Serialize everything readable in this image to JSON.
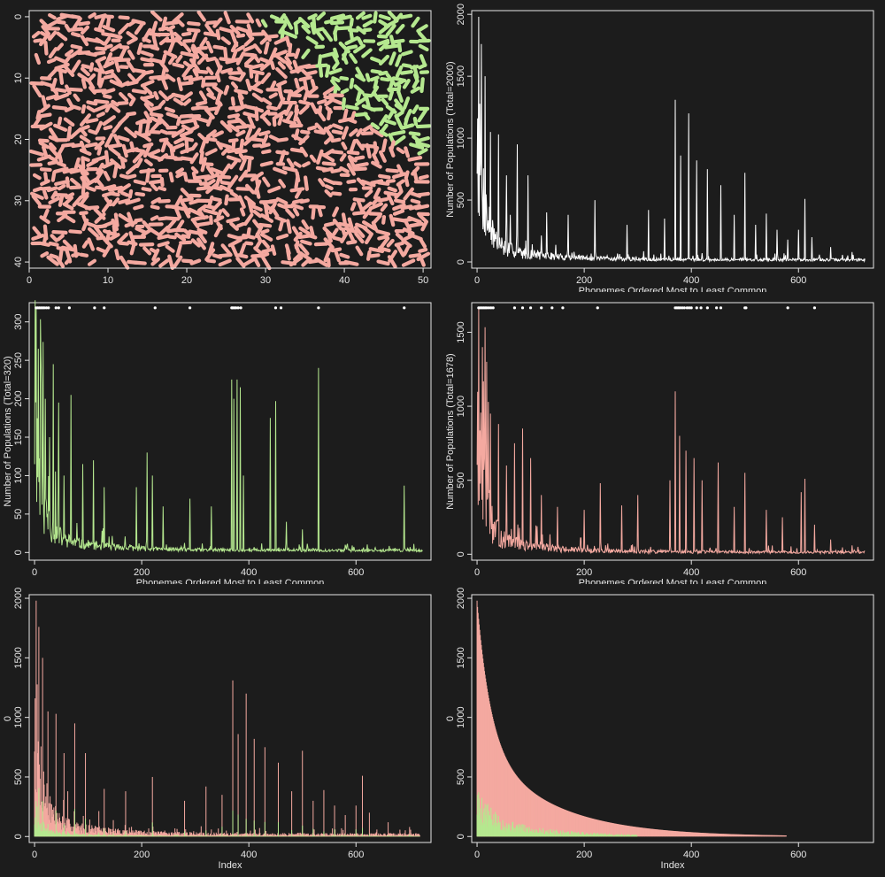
{
  "colors": {
    "background": "#1c1c1c",
    "frame": "#e6e6e6",
    "pink": "#f4a9a0",
    "green": "#b5e88f",
    "white": "#ffffff"
  },
  "chart_data": [
    {
      "id": "map",
      "type": "heatmap",
      "title": "",
      "xlabel": "",
      "ylabel": "",
      "xlim": [
        0,
        51
      ],
      "ylim": [
        41,
        -1
      ],
      "x_ticks": [
        0,
        10,
        20,
        30,
        40,
        50
      ],
      "y_ticks": [
        0,
        10,
        20,
        30,
        40
      ],
      "grid": false,
      "regions": [
        {
          "name": "",
          "color": "#b5e88f",
          "area": "upper-right corner"
        },
        {
          "name": "",
          "color": "#f4a9a0",
          "area": "remainder"
        }
      ],
      "boundary": [
        [
          28,
          0
        ],
        [
          33,
          4
        ],
        [
          36,
          8
        ],
        [
          39,
          13
        ],
        [
          42,
          17
        ],
        [
          45,
          20
        ],
        [
          48,
          22
        ],
        [
          50,
          24
        ]
      ]
    },
    {
      "id": "all",
      "type": "line",
      "title": "",
      "xlabel": "Phonemes Ordered Most to Least Common",
      "ylabel": "Number of Populations (Total=2000)",
      "xlim": [
        -10,
        740
      ],
      "ylim": [
        -50,
        2030
      ],
      "x_ticks": [
        0,
        200,
        400,
        600
      ],
      "y_ticks": [
        0,
        500,
        1000,
        1500,
        2000
      ],
      "color": "#ffffff",
      "n": 725,
      "spikes": [
        [
          3,
          1980
        ],
        [
          8,
          1760
        ],
        [
          15,
          1500
        ],
        [
          25,
          1050
        ],
        [
          40,
          1030
        ],
        [
          55,
          700
        ],
        [
          75,
          950
        ],
        [
          95,
          700
        ],
        [
          130,
          400
        ],
        [
          170,
          380
        ],
        [
          220,
          500
        ],
        [
          280,
          300
        ],
        [
          320,
          420
        ],
        [
          350,
          350
        ],
        [
          370,
          1310
        ],
        [
          380,
          860
        ],
        [
          395,
          1200
        ],
        [
          410,
          820
        ],
        [
          430,
          750
        ],
        [
          455,
          620
        ],
        [
          480,
          380
        ],
        [
          500,
          720
        ],
        [
          520,
          300
        ],
        [
          540,
          390
        ],
        [
          560,
          260
        ],
        [
          580,
          180
        ],
        [
          600,
          260
        ],
        [
          612,
          510
        ],
        [
          625,
          200
        ],
        [
          660,
          120
        ],
        [
          700,
          80
        ]
      ],
      "top_points": []
    },
    {
      "id": "green",
      "type": "line",
      "title": "",
      "xlabel": "Phonemes Ordered Most to Least Common",
      "ylabel": "Number of Populations (Total=320)",
      "xlim": [
        -10,
        740
      ],
      "ylim": [
        -10,
        325
      ],
      "x_ticks": [
        0,
        200,
        400,
        600
      ],
      "y_ticks": [
        0,
        50,
        100,
        150,
        200,
        250,
        300
      ],
      "color": "#b5e88f",
      "n": 725,
      "spikes": [
        [
          3,
          318
        ],
        [
          7,
          265
        ],
        [
          12,
          255
        ],
        [
          20,
          200
        ],
        [
          28,
          150
        ],
        [
          35,
          245
        ],
        [
          45,
          195
        ],
        [
          55,
          100
        ],
        [
          68,
          205
        ],
        [
          90,
          115
        ],
        [
          110,
          120
        ],
        [
          130,
          85
        ],
        [
          190,
          85
        ],
        [
          210,
          130
        ],
        [
          220,
          100
        ],
        [
          240,
          60
        ],
        [
          290,
          70
        ],
        [
          330,
          60
        ],
        [
          368,
          225
        ],
        [
          372,
          200
        ],
        [
          378,
          225
        ],
        [
          384,
          215
        ],
        [
          390,
          100
        ],
        [
          440,
          175
        ],
        [
          450,
          197
        ],
        [
          470,
          40
        ],
        [
          500,
          30
        ],
        [
          530,
          240
        ],
        [
          580,
          10
        ],
        [
          690,
          87
        ]
      ],
      "top_points": [
        3,
        6,
        9,
        12,
        15,
        18,
        22,
        26,
        40,
        45,
        65,
        112,
        130,
        225,
        290,
        368,
        370,
        373,
        376,
        380,
        385,
        450,
        460,
        530,
        690
      ]
    },
    {
      "id": "pink",
      "type": "line",
      "title": "",
      "xlabel": "Phonemes Ordered Most to Least Common",
      "ylabel": "Number of Populations (Total=1678)",
      "xlim": [
        -10,
        740
      ],
      "ylim": [
        -40,
        1700
      ],
      "x_ticks": [
        0,
        200,
        400,
        600
      ],
      "y_ticks": [
        0,
        500,
        1000,
        1500
      ],
      "color": "#f4a9a0",
      "n": 725,
      "spikes": [
        [
          3,
          1670
        ],
        [
          10,
          1400
        ],
        [
          18,
          1300
        ],
        [
          25,
          950
        ],
        [
          40,
          880
        ],
        [
          55,
          600
        ],
        [
          70,
          750
        ],
        [
          85,
          850
        ],
        [
          100,
          650
        ],
        [
          120,
          400
        ],
        [
          150,
          320
        ],
        [
          200,
          300
        ],
        [
          230,
          480
        ],
        [
          270,
          330
        ],
        [
          300,
          400
        ],
        [
          360,
          500
        ],
        [
          370,
          1100
        ],
        [
          378,
          800
        ],
        [
          390,
          700
        ],
        [
          405,
          650
        ],
        [
          420,
          500
        ],
        [
          450,
          620
        ],
        [
          480,
          320
        ],
        [
          500,
          550
        ],
        [
          540,
          300
        ],
        [
          570,
          250
        ],
        [
          605,
          420
        ],
        [
          612,
          510
        ],
        [
          630,
          200
        ],
        [
          660,
          100
        ],
        [
          700,
          60
        ]
      ],
      "top_points": [
        3,
        6,
        9,
        12,
        15,
        18,
        22,
        26,
        30,
        70,
        85,
        100,
        120,
        140,
        160,
        225,
        370,
        373,
        376,
        379,
        383,
        387,
        392,
        396,
        400,
        410,
        418,
        430,
        447,
        455,
        500,
        502,
        580,
        630
      ]
    },
    {
      "id": "stacked",
      "type": "bar",
      "title": "",
      "xlabel": "Index",
      "ylabel": "0",
      "xlim": [
        -10,
        740
      ],
      "ylim": [
        -50,
        2030
      ],
      "x_ticks": [
        0,
        200,
        400,
        600
      ],
      "y_ticks": [
        0,
        500,
        1000,
        1500,
        2000
      ],
      "n": 720,
      "spikes": [
        [
          3,
          1980
        ],
        [
          8,
          1760
        ],
        [
          15,
          1500
        ],
        [
          25,
          1050
        ],
        [
          40,
          1030
        ],
        [
          55,
          700
        ],
        [
          75,
          950
        ],
        [
          95,
          700
        ],
        [
          130,
          400
        ],
        [
          170,
          380
        ],
        [
          220,
          500
        ],
        [
          280,
          300
        ],
        [
          320,
          420
        ],
        [
          350,
          350
        ],
        [
          370,
          1310
        ],
        [
          380,
          860
        ],
        [
          395,
          1200
        ],
        [
          410,
          820
        ],
        [
          430,
          750
        ],
        [
          455,
          620
        ],
        [
          480,
          380
        ],
        [
          500,
          720
        ],
        [
          520,
          300
        ],
        [
          540,
          390
        ],
        [
          560,
          260
        ],
        [
          580,
          180
        ],
        [
          600,
          260
        ],
        [
          612,
          510
        ],
        [
          625,
          200
        ],
        [
          660,
          120
        ],
        [
          700,
          80
        ]
      ],
      "series": [
        {
          "name": "",
          "color": "#f4a9a0"
        },
        {
          "name": "",
          "color": "#b5e88f"
        }
      ]
    },
    {
      "id": "sorted",
      "type": "bar",
      "title": "",
      "xlabel": "Index",
      "ylabel": "0",
      "xlim": [
        -10,
        740
      ],
      "ylim": [
        -50,
        2030
      ],
      "x_ticks": [
        0,
        200,
        400,
        600
      ],
      "y_ticks": [
        0,
        500,
        1000,
        1500,
        2000
      ],
      "n": 578,
      "max_value": 1980,
      "series": [
        {
          "name": "",
          "color": "#f4a9a0"
        },
        {
          "name": "",
          "color": "#b5e88f"
        }
      ]
    }
  ]
}
